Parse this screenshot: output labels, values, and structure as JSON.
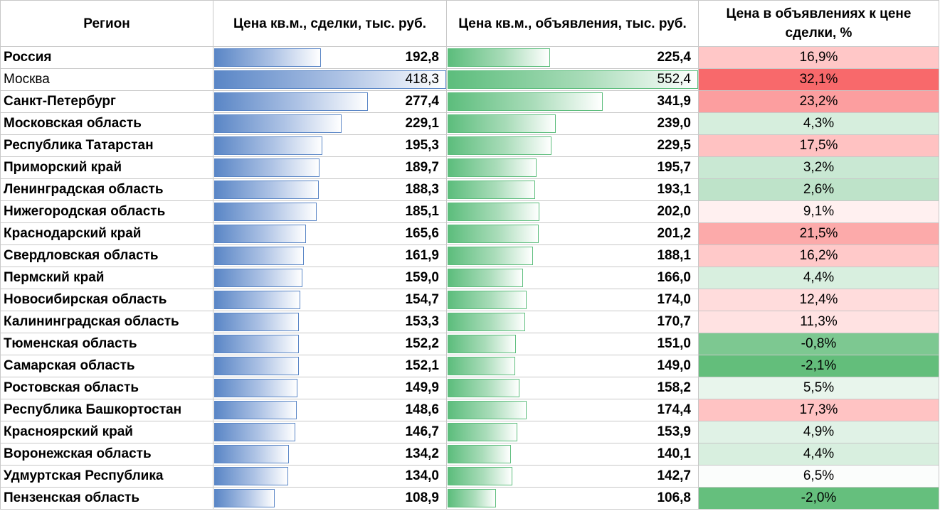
{
  "headers": {
    "region": "Регион",
    "deal_price": "Цена кв.м., сделки, тыс. руб.",
    "ad_price": "Цена кв.м., объявления, тыс. руб.",
    "ratio": "Цена в объявлениях к цене сделки, %"
  },
  "rows": [
    {
      "region": "Россия",
      "deal": "192,8",
      "ads": "225,4",
      "pct": "16,9%",
      "deal_v": 192.8,
      "ads_v": 225.4,
      "pct_v": 16.9,
      "bg": "#ffc7c7"
    },
    {
      "region": "Москва",
      "deal": "418,3",
      "ads": "552,4",
      "pct": "32,1%",
      "deal_v": 418.3,
      "ads_v": 552.4,
      "pct_v": 32.1,
      "bg": "#f8696b"
    },
    {
      "region": "Санкт-Петербург",
      "deal": "277,4",
      "ads": "341,9",
      "pct": "23,2%",
      "deal_v": 277.4,
      "ads_v": 341.9,
      "pct_v": 23.2,
      "bg": "#fc9e9f"
    },
    {
      "region": "Московская область",
      "deal": "229,1",
      "ads": "239,0",
      "pct": "4,3%",
      "deal_v": 229.1,
      "ads_v": 239.0,
      "pct_v": 4.3,
      "bg": "#d6eedd"
    },
    {
      "region": "Республика Татарстан",
      "deal": "195,3",
      "ads": "229,5",
      "pct": "17,5%",
      "deal_v": 195.3,
      "ads_v": 229.5,
      "pct_v": 17.5,
      "bg": "#ffc2c2"
    },
    {
      "region": "Приморский край",
      "deal": "189,7",
      "ads": "195,7",
      "pct": "3,2%",
      "deal_v": 189.7,
      "ads_v": 195.7,
      "pct_v": 3.2,
      "bg": "#c9e8d3"
    },
    {
      "region": "Ленинградская область",
      "deal": "188,3",
      "ads": "193,1",
      "pct": "2,6%",
      "deal_v": 188.3,
      "ads_v": 193.1,
      "pct_v": 2.6,
      "bg": "#bee3c9"
    },
    {
      "region": "Нижегородская область",
      "deal": "185,1",
      "ads": "202,0",
      "pct": "9,1%",
      "deal_v": 185.1,
      "ads_v": 202.0,
      "pct_v": 9.1,
      "bg": "#fff0f0"
    },
    {
      "region": "Краснодарский край",
      "deal": "165,6",
      "ads": "201,2",
      "pct": "21,5%",
      "deal_v": 165.6,
      "ads_v": 201.2,
      "pct_v": 21.5,
      "bg": "#fcaaaa"
    },
    {
      "region": "Свердловская область",
      "deal": "161,9",
      "ads": "188,1",
      "pct": "16,2%",
      "deal_v": 161.9,
      "ads_v": 188.1,
      "pct_v": 16.2,
      "bg": "#ffc9c9"
    },
    {
      "region": "Пермский край",
      "deal": "159,0",
      "ads": "166,0",
      "pct": "4,4%",
      "deal_v": 159.0,
      "ads_v": 166.0,
      "pct_v": 4.4,
      "bg": "#d8efdf"
    },
    {
      "region": "Новосибирская область",
      "deal": "154,7",
      "ads": "174,0",
      "pct": "12,4%",
      "deal_v": 154.7,
      "ads_v": 174.0,
      "pct_v": 12.4,
      "bg": "#ffdcdc"
    },
    {
      "region": "Калининградская область",
      "deal": "153,3",
      "ads": "170,7",
      "pct": "11,3%",
      "deal_v": 153.3,
      "ads_v": 170.7,
      "pct_v": 11.3,
      "bg": "#ffe2e2"
    },
    {
      "region": "Тюменская область",
      "deal": "152,2",
      "ads": "151,0",
      "pct": "-0,8%",
      "deal_v": 152.2,
      "ads_v": 151.0,
      "pct_v": -0.8,
      "bg": "#7dc891"
    },
    {
      "region": "Самарская область",
      "deal": "152,1",
      "ads": "149,0",
      "pct": "-2,1%",
      "deal_v": 152.1,
      "ads_v": 149.0,
      "pct_v": -2.1,
      "bg": "#63be7b"
    },
    {
      "region": "Ростовская область",
      "deal": "149,9",
      "ads": "158,2",
      "pct": "5,5%",
      "deal_v": 149.9,
      "ads_v": 158.2,
      "pct_v": 5.5,
      "bg": "#e8f5ec"
    },
    {
      "region": "Республика Башкортостан",
      "deal": "148,6",
      "ads": "174,4",
      "pct": "17,3%",
      "deal_v": 148.6,
      "ads_v": 174.4,
      "pct_v": 17.3,
      "bg": "#ffc3c3"
    },
    {
      "region": "Красноярский край",
      "deal": "146,7",
      "ads": "153,9",
      "pct": "4,9%",
      "deal_v": 146.7,
      "ads_v": 153.9,
      "pct_v": 4.9,
      "bg": "#e0f2e6"
    },
    {
      "region": "Воронежская область",
      "deal": "134,2",
      "ads": "140,1",
      "pct": "4,4%",
      "deal_v": 134.2,
      "ads_v": 140.1,
      "pct_v": 4.4,
      "bg": "#d8efdf"
    },
    {
      "region": "Удмуртская Республика",
      "deal": "134,0",
      "ads": "142,7",
      "pct": "6,5%",
      "deal_v": 134.0,
      "ads_v": 142.7,
      "pct_v": 6.5,
      "bg": "#fbfdfc"
    },
    {
      "region": "Пензенская область",
      "deal": "108,9",
      "ads": "106,8",
      "pct": "-2,0%",
      "deal_v": 108.9,
      "ads_v": 106.8,
      "pct_v": -2.0,
      "bg": "#65bf7d"
    }
  ],
  "chart_data": {
    "type": "table",
    "columns": [
      "Регион",
      "Цена кв.м., сделки, тыс. руб.",
      "Цена кв.м., объявления, тыс. руб.",
      "Цена в объявлениях к цене сделки, %"
    ],
    "deal_bar_max": 418.3,
    "ads_bar_max": 552.4,
    "colors": {
      "deal_bar": "#5a86c6",
      "ads_bar": "#5cbd7c",
      "pct_high": "#f8696b",
      "pct_low": "#63be7b"
    }
  }
}
